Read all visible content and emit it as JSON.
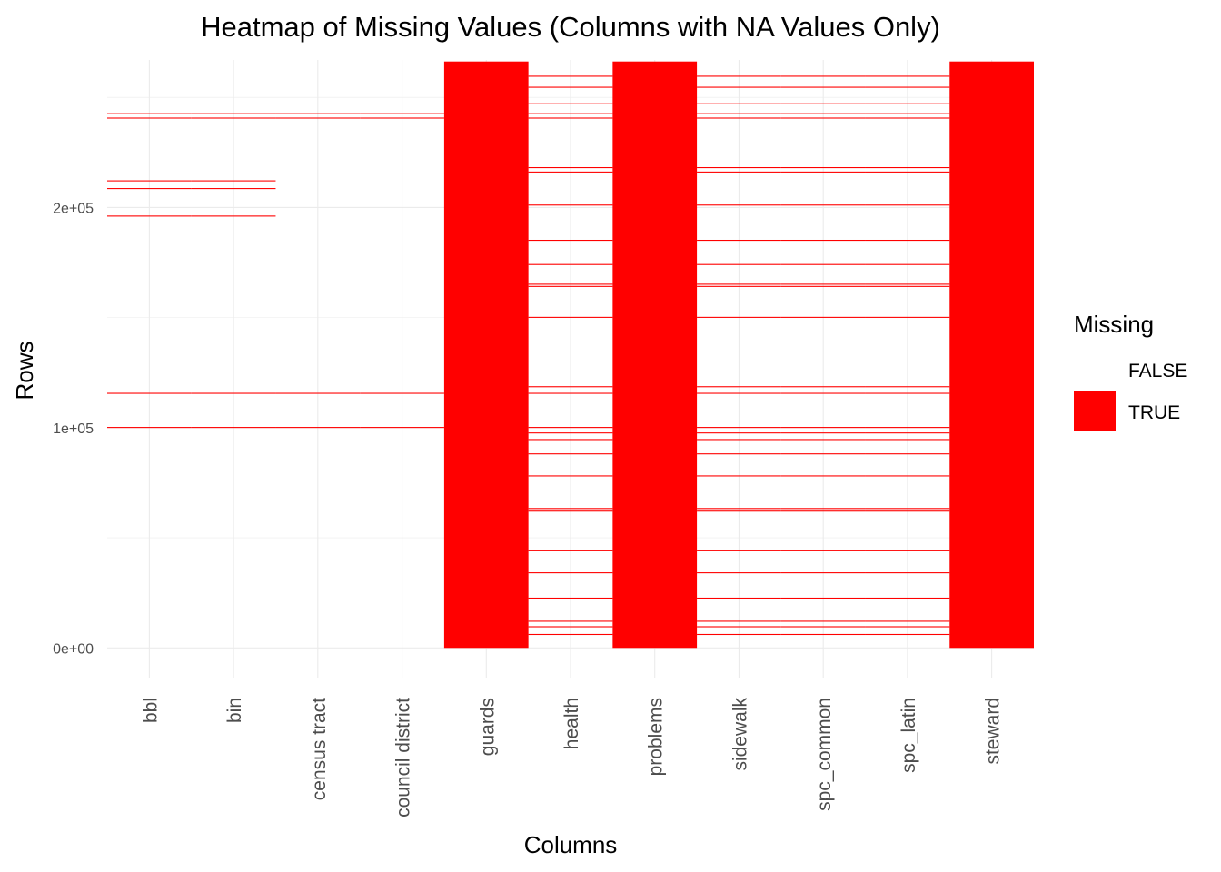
{
  "chart_data": {
    "type": "heatmap",
    "title": "Heatmap of Missing Values (Columns with NA Values Only)",
    "xlabel": "Columns",
    "ylabel": "Rows",
    "categories": [
      "bbl",
      "bin",
      "census tract",
      "council district",
      "guards",
      "health",
      "problems",
      "sidewalk",
      "spc_common",
      "spc_latin",
      "steward"
    ],
    "y_ticks": [
      {
        "value": 0,
        "label": "0e+00"
      },
      {
        "value": 100000,
        "label": "1e+05"
      },
      {
        "value": 200000,
        "label": "2e+05"
      }
    ],
    "ylim": [
      -13500,
      267000
    ],
    "n_rows": 266300,
    "grid": true,
    "legend": {
      "title": "Missing",
      "position": "right",
      "entries": [
        {
          "label": "FALSE",
          "color": "#ffffff"
        },
        {
          "label": "TRUE",
          "color": "#ff0000"
        }
      ]
    },
    "colors": {
      "missing": "#ff0000",
      "present": "#ffffff",
      "grid": "#ebebeb"
    },
    "segments": {
      "bbl": [
        [
          100000,
          100200
        ],
        [
          115500,
          115700
        ],
        [
          196000,
          196200
        ],
        [
          208500,
          208700
        ],
        [
          212000,
          212200
        ],
        [
          240500,
          240700
        ],
        [
          242500,
          242700
        ]
      ],
      "bin": [
        [
          100000,
          100200
        ],
        [
          115500,
          115700
        ],
        [
          196000,
          196200
        ],
        [
          208500,
          208700
        ],
        [
          212000,
          212200
        ],
        [
          240500,
          240700
        ],
        [
          242500,
          242700
        ]
      ],
      "census tract": [
        [
          100000,
          100200
        ],
        [
          115500,
          115700
        ],
        [
          240500,
          240700
        ],
        [
          242500,
          242700
        ]
      ],
      "council district": [
        [
          100000,
          100200
        ],
        [
          115500,
          115700
        ],
        [
          240500,
          240700
        ],
        [
          242500,
          242700
        ]
      ],
      "guards": [
        [
          0,
          266300
        ]
      ],
      "health": [
        [
          6000,
          6200
        ],
        [
          9500,
          9700
        ],
        [
          12000,
          12200
        ],
        [
          22500,
          22700
        ],
        [
          34000,
          34200
        ],
        [
          44000,
          44200
        ],
        [
          62000,
          62200
        ],
        [
          63200,
          63400
        ],
        [
          78000,
          78200
        ],
        [
          88000,
          88200
        ],
        [
          94500,
          94700
        ],
        [
          97500,
          97700
        ],
        [
          100000,
          100200
        ],
        [
          115500,
          115700
        ],
        [
          118500,
          118700
        ],
        [
          150000,
          150200
        ],
        [
          164000,
          164300
        ],
        [
          165000,
          165300
        ],
        [
          174000,
          174200
        ],
        [
          185000,
          185200
        ],
        [
          201000,
          201200
        ],
        [
          216000,
          216200
        ],
        [
          218000,
          218200
        ],
        [
          240500,
          240700
        ],
        [
          242500,
          242700
        ],
        [
          247000,
          247200
        ],
        [
          254500,
          254700
        ],
        [
          259500,
          259700
        ]
      ],
      "problems": [
        [
          0,
          266300
        ]
      ],
      "sidewalk": [
        [
          6000,
          6200
        ],
        [
          9500,
          9700
        ],
        [
          12000,
          12200
        ],
        [
          22500,
          22700
        ],
        [
          34000,
          34200
        ],
        [
          44000,
          44200
        ],
        [
          62000,
          62200
        ],
        [
          63200,
          63400
        ],
        [
          78000,
          78200
        ],
        [
          88000,
          88200
        ],
        [
          94500,
          94700
        ],
        [
          97500,
          97700
        ],
        [
          100000,
          100200
        ],
        [
          115500,
          115700
        ],
        [
          118500,
          118700
        ],
        [
          150000,
          150200
        ],
        [
          164000,
          164300
        ],
        [
          165000,
          165300
        ],
        [
          174000,
          174200
        ],
        [
          185000,
          185200
        ],
        [
          201000,
          201200
        ],
        [
          216000,
          216200
        ],
        [
          218000,
          218200
        ],
        [
          240500,
          240700
        ],
        [
          242500,
          242700
        ],
        [
          247000,
          247200
        ],
        [
          254500,
          254700
        ],
        [
          259500,
          259700
        ]
      ],
      "spc_common": [
        [
          6000,
          6200
        ],
        [
          9500,
          9700
        ],
        [
          12000,
          12200
        ],
        [
          22500,
          22700
        ],
        [
          34000,
          34200
        ],
        [
          44000,
          44200
        ],
        [
          62000,
          62200
        ],
        [
          63200,
          63400
        ],
        [
          78000,
          78200
        ],
        [
          88000,
          88200
        ],
        [
          94500,
          94700
        ],
        [
          97500,
          97700
        ],
        [
          100000,
          100200
        ],
        [
          115500,
          115700
        ],
        [
          118500,
          118700
        ],
        [
          150000,
          150200
        ],
        [
          164000,
          164300
        ],
        [
          165000,
          165300
        ],
        [
          174000,
          174200
        ],
        [
          185000,
          185200
        ],
        [
          201000,
          201200
        ],
        [
          216000,
          216200
        ],
        [
          218000,
          218200
        ],
        [
          240500,
          240700
        ],
        [
          242500,
          242700
        ],
        [
          247000,
          247200
        ],
        [
          254500,
          254700
        ],
        [
          259500,
          259700
        ]
      ],
      "spc_latin": [
        [
          6000,
          6200
        ],
        [
          9500,
          9700
        ],
        [
          12000,
          12200
        ],
        [
          22500,
          22700
        ],
        [
          34000,
          34200
        ],
        [
          44000,
          44200
        ],
        [
          62000,
          62200
        ],
        [
          63200,
          63400
        ],
        [
          78000,
          78200
        ],
        [
          88000,
          88200
        ],
        [
          94500,
          94700
        ],
        [
          97500,
          97700
        ],
        [
          100000,
          100200
        ],
        [
          115500,
          115700
        ],
        [
          118500,
          118700
        ],
        [
          150000,
          150200
        ],
        [
          164000,
          164300
        ],
        [
          165000,
          165300
        ],
        [
          174000,
          174200
        ],
        [
          185000,
          185200
        ],
        [
          201000,
          201200
        ],
        [
          216000,
          216200
        ],
        [
          218000,
          218200
        ],
        [
          240500,
          240700
        ],
        [
          242500,
          242700
        ],
        [
          247000,
          247200
        ],
        [
          254500,
          254700
        ],
        [
          259500,
          259700
        ]
      ],
      "steward": [
        [
          0,
          266300
        ]
      ]
    }
  }
}
